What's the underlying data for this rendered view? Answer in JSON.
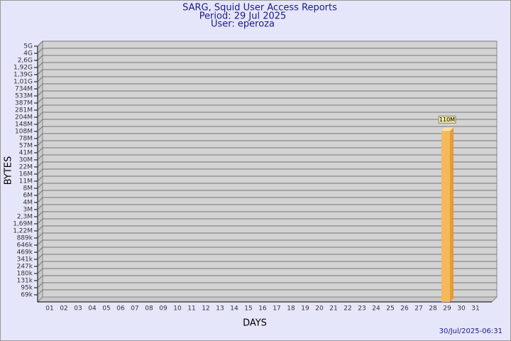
{
  "chart_data": {
    "type": "bar",
    "title": "SARG, Squid User Access Reports",
    "subtitle": "Period: 29 Jul 2025",
    "user": "User: eperoza",
    "x_label": "DAYS",
    "y_label": "BYTES",
    "footer": "30/Jul/2025-06:31",
    "log_scale": true,
    "grid": true,
    "color": "#f5b85b",
    "categories": [
      "01",
      "02",
      "03",
      "04",
      "05",
      "06",
      "07",
      "08",
      "09",
      "10",
      "11",
      "12",
      "13",
      "14",
      "15",
      "16",
      "17",
      "18",
      "19",
      "20",
      "21",
      "22",
      "23",
      "24",
      "25",
      "26",
      "27",
      "28",
      "29",
      "30",
      "31"
    ],
    "values": [
      null,
      null,
      null,
      null,
      null,
      null,
      null,
      null,
      null,
      null,
      null,
      null,
      null,
      null,
      null,
      null,
      null,
      null,
      null,
      null,
      null,
      null,
      null,
      null,
      null,
      null,
      null,
      null,
      110000000,
      null,
      null
    ],
    "value_labels": [
      null,
      null,
      null,
      null,
      null,
      null,
      null,
      null,
      null,
      null,
      null,
      null,
      null,
      null,
      null,
      null,
      null,
      null,
      null,
      null,
      null,
      null,
      null,
      null,
      null,
      null,
      null,
      null,
      "110M",
      null,
      null
    ],
    "ylim": [
      50000,
      5000000000
    ],
    "yticks": [
      {
        "value": 69000,
        "label": "69k"
      },
      {
        "value": 95000,
        "label": "95k"
      },
      {
        "value": 131000,
        "label": "131k"
      },
      {
        "value": 180000,
        "label": "180k"
      },
      {
        "value": 247000,
        "label": "247k"
      },
      {
        "value": 341000,
        "label": "341k"
      },
      {
        "value": 469000,
        "label": "469k"
      },
      {
        "value": 646000,
        "label": "646k"
      },
      {
        "value": 889000,
        "label": "889k"
      },
      {
        "value": 1220000,
        "label": "1,22M"
      },
      {
        "value": 1690000,
        "label": "1,69M"
      },
      {
        "value": 2300000,
        "label": "2,3M"
      },
      {
        "value": 3000000,
        "label": "3M"
      },
      {
        "value": 4000000,
        "label": "4M"
      },
      {
        "value": 6000000,
        "label": "6M"
      },
      {
        "value": 8000000,
        "label": "8M"
      },
      {
        "value": 11000000,
        "label": "11M"
      },
      {
        "value": 16000000,
        "label": "16M"
      },
      {
        "value": 22000000,
        "label": "22M"
      },
      {
        "value": 30000000,
        "label": "30M"
      },
      {
        "value": 41000000,
        "label": "41M"
      },
      {
        "value": 57000000,
        "label": "57M"
      },
      {
        "value": 78000000,
        "label": "78M"
      },
      {
        "value": 108000000,
        "label": "108M"
      },
      {
        "value": 148000000,
        "label": "148M"
      },
      {
        "value": 204000000,
        "label": "204M"
      },
      {
        "value": 281000000,
        "label": "281M"
      },
      {
        "value": 387000000,
        "label": "387M"
      },
      {
        "value": 533000000,
        "label": "533M"
      },
      {
        "value": 734000000,
        "label": "734M"
      },
      {
        "value": 1010000000,
        "label": "1,01G"
      },
      {
        "value": 1390000000,
        "label": "1,39G"
      },
      {
        "value": 1920000000,
        "label": "1,92G"
      },
      {
        "value": 2600000000,
        "label": "2,6G"
      },
      {
        "value": 4000000000,
        "label": "4G"
      },
      {
        "value": 5000000000,
        "label": "5G"
      }
    ]
  }
}
